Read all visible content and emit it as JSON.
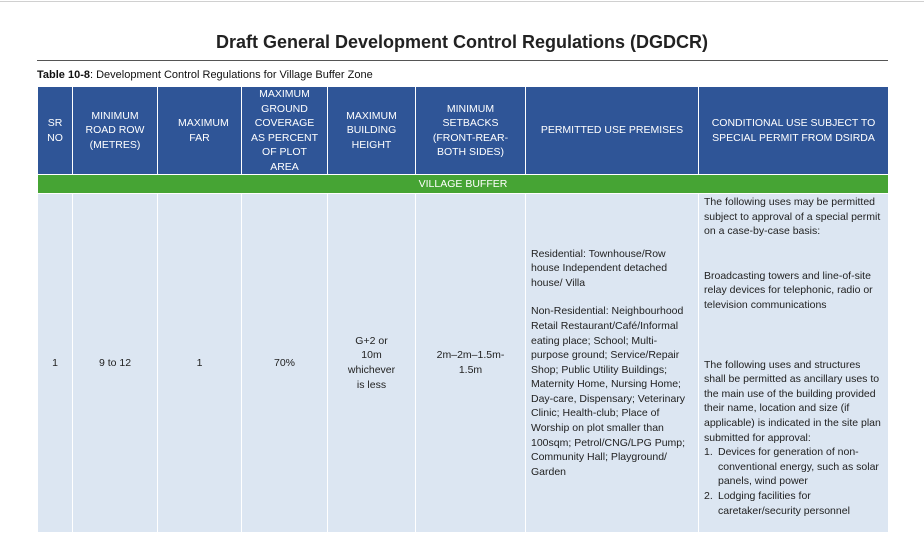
{
  "header": {
    "title": "Draft General Development Control Regulations (DGDCR)"
  },
  "caption": {
    "label": "Table 10-8",
    "text": ": Development Control Regulations for Village Buffer Zone"
  },
  "table": {
    "columns": [
      "SR NO",
      "MINIMUM ROAD ROW (METRES)",
      "MAXIMUM FAR",
      "MAXIMUM GROUND COVERAGE AS PERCENT OF PLOT AREA",
      "MAXIMUM BUILDING HEIGHT",
      "MINIMUM SETBACKS (FRONT-REAR-BOTH SIDES)",
      "PERMITTED USE PREMISES",
      "CONDITIONAL USE SUBJECT TO SPECIAL PERMIT FROM DSIRDA"
    ],
    "zone": "VILLAGE BUFFER",
    "row": {
      "sr": "1",
      "road_row": "9 to 12",
      "far": "1",
      "coverage": "70%",
      "height": "G+2 or 10m whichever is less",
      "setbacks": "2m–2m–1.5m-1.5m",
      "permitted": [
        "Residential: Townhouse/Row house Independent detached house/ Villa",
        "Non-Residential: Neighbourhood Retail Restaurant/Café/Informal eating place; School; Multi-purpose ground; Service/Repair Shop; Public Utility Buildings; Maternity Home, Nursing Home; Day-care, Dispensary; Veterinary Clinic; Health-club; Place of Worship on plot smaller than 100sqm; Petrol/CNG/LPG Pump; Community Hall; Playground/ Garden"
      ],
      "conditional": {
        "paragraphs": [
          "The following uses may be permitted subject to approval of a special permit on a case-by-case basis:",
          "Broadcasting towers and line-of-site relay devices for telephonic, radio or television communications",
          "The following uses and structures shall be permitted as ancillary uses to the main use of the building provided their name, location and size (if applicable) is indicated in the site plan submitted for approval:"
        ],
        "items": [
          {
            "marker": "1.",
            "text": "Devices for generation of non-conventional energy, such as solar panels, wind power"
          },
          {
            "marker": "2.",
            "text": "Lodging facilities for caretaker/security personnel"
          }
        ]
      }
    }
  }
}
